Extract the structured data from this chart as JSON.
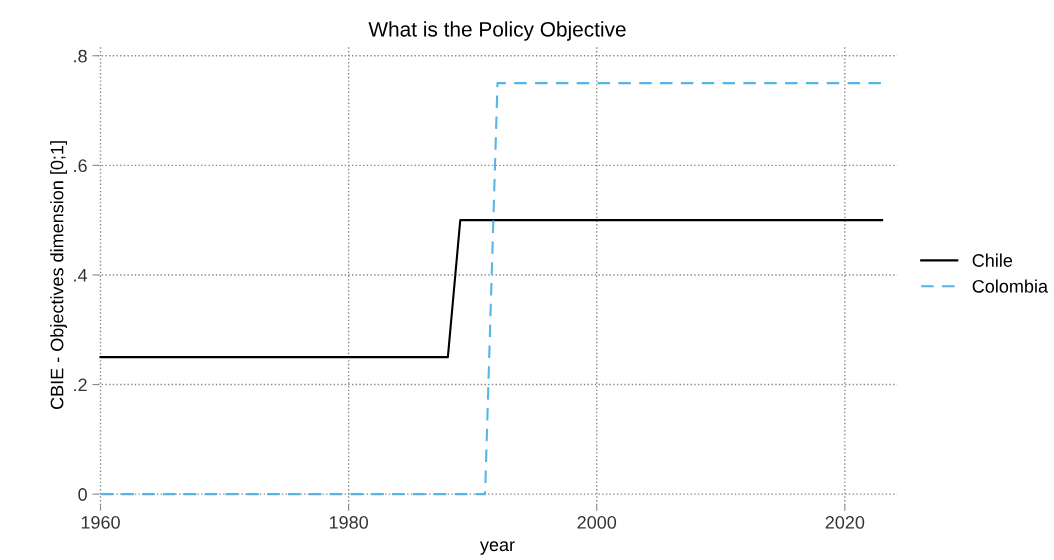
{
  "chart_data": {
    "type": "line",
    "title": "What is the Policy Objective",
    "xlabel": "year",
    "ylabel": "CBIE - Objectives dimension [0;1]",
    "series": [
      {
        "name": "Chile",
        "color": "#000000",
        "line_style": "solid",
        "x": [
          1960,
          1988,
          1989,
          2023
        ],
        "values": [
          0.25,
          0.25,
          0.5,
          0.5
        ]
      },
      {
        "name": "Colombia",
        "color": "#56b4e9",
        "line_style": "dashed",
        "x": [
          1960,
          1991,
          1992,
          2023
        ],
        "values": [
          0,
          0,
          0.75,
          0.75
        ]
      }
    ],
    "xlim": [
      1959.8,
      2024.2
    ],
    "xticks": [
      1960,
      1980,
      2000,
      2020
    ],
    "ylim": [
      -0.02,
      0.82
    ],
    "yticks": [
      {
        "value": 0,
        "label": "0"
      },
      {
        "value": 0.2,
        "label": ".2"
      },
      {
        "value": 0.4,
        "label": ".4"
      },
      {
        "value": 0.6,
        "label": ".6"
      },
      {
        "value": 0.8,
        "label": ".8"
      }
    ],
    "grid": true,
    "legend": "right",
    "marker": "none"
  }
}
